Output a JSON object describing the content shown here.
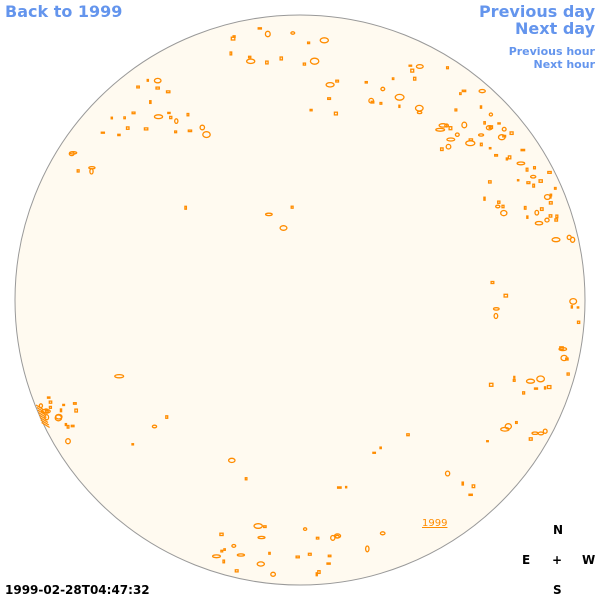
{
  "nav": {
    "back": "Back to 1999",
    "previous_day": "Previous day",
    "next_day": "Next day",
    "previous_hour": "Previous hour",
    "next_hour": "Next hour"
  },
  "year_label": "1999",
  "compass": {
    "north": "N",
    "south": "S",
    "east": "E",
    "west": "W",
    "center": "+"
  },
  "timestamp": "1999-02-28T04:47:32",
  "colors": {
    "disk_fill": "#fffaf0",
    "disk_edge": "#999999",
    "feature": "#ff8c00",
    "link": "#6495ed"
  }
}
